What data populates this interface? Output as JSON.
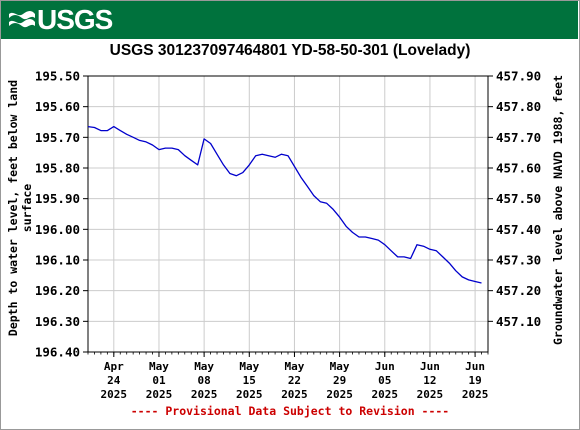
{
  "banner": {
    "logo_text": "USGS",
    "color": "#00723d"
  },
  "chart_data": {
    "type": "line",
    "title": "USGS 301237097464801 YD-58-50-301 (Lovelady)",
    "ylabel_left": "Depth to water level, feet below land surface",
    "ylabel_right": "Groundwater level above NAVD 1988, feet",
    "footer": "---- Provisional Data Subject to Revision ----",
    "y_left_inverted": true,
    "ylim_left": [
      195.5,
      196.4
    ],
    "yticks_left": [
      "195.50",
      "195.60",
      "195.70",
      "195.80",
      "195.90",
      "196.00",
      "196.10",
      "196.20",
      "196.30",
      "196.40"
    ],
    "yticks_right": [
      "457.90",
      "457.80",
      "457.70",
      "457.60",
      "457.50",
      "457.40",
      "457.30",
      "457.20",
      "457.10"
    ],
    "xlim": [
      "2025-04-20",
      "2025-06-21"
    ],
    "xticks": [
      {
        "month": "Apr",
        "day": "24",
        "year": "2025"
      },
      {
        "month": "May",
        "day": "01",
        "year": "2025"
      },
      {
        "month": "May",
        "day": "08",
        "year": "2025"
      },
      {
        "month": "May",
        "day": "15",
        "year": "2025"
      },
      {
        "month": "May",
        "day": "22",
        "year": "2025"
      },
      {
        "month": "May",
        "day": "29",
        "year": "2025"
      },
      {
        "month": "Jun",
        "day": "05",
        "year": "2025"
      },
      {
        "month": "Jun",
        "day": "12",
        "year": "2025"
      },
      {
        "month": "Jun",
        "day": "19",
        "year": "2025"
      }
    ],
    "grid": true,
    "series_color": "#0000cc",
    "series": [
      {
        "x": [
          "2025-04-20",
          "2025-04-21",
          "2025-04-22",
          "2025-04-23",
          "2025-04-24",
          "2025-04-25",
          "2025-04-26",
          "2025-04-27",
          "2025-04-28",
          "2025-04-29",
          "2025-04-30",
          "2025-05-01",
          "2025-05-02",
          "2025-05-03",
          "2025-05-04",
          "2025-05-05",
          "2025-05-06",
          "2025-05-07",
          "2025-05-08",
          "2025-05-09",
          "2025-05-10",
          "2025-05-11",
          "2025-05-12",
          "2025-05-13",
          "2025-05-14",
          "2025-05-15",
          "2025-05-16",
          "2025-05-17",
          "2025-05-18",
          "2025-05-19",
          "2025-05-20",
          "2025-05-21",
          "2025-05-22",
          "2025-05-23",
          "2025-05-24",
          "2025-05-25",
          "2025-05-26",
          "2025-05-27",
          "2025-05-28",
          "2025-05-29",
          "2025-05-30",
          "2025-05-31",
          "2025-06-01",
          "2025-06-02",
          "2025-06-03",
          "2025-06-04",
          "2025-06-05",
          "2025-06-06",
          "2025-06-07",
          "2025-06-08",
          "2025-06-09",
          "2025-06-10",
          "2025-06-11",
          "2025-06-12",
          "2025-06-13",
          "2025-06-14",
          "2025-06-15",
          "2025-06-16",
          "2025-06-17",
          "2025-06-18",
          "2025-06-19",
          "2025-06-20"
        ],
        "y": [
          195.665,
          195.668,
          195.678,
          195.678,
          195.665,
          195.678,
          195.69,
          195.7,
          195.71,
          195.715,
          195.725,
          195.74,
          195.735,
          195.735,
          195.74,
          195.76,
          195.775,
          195.79,
          195.705,
          195.72,
          195.755,
          195.79,
          195.818,
          195.825,
          195.815,
          195.79,
          195.76,
          195.755,
          195.76,
          195.765,
          195.755,
          195.76,
          195.795,
          195.83,
          195.86,
          195.89,
          195.91,
          195.915,
          195.935,
          195.96,
          195.99,
          196.01,
          196.025,
          196.025,
          196.03,
          196.035,
          196.05,
          196.07,
          196.09,
          196.09,
          196.095,
          196.05,
          196.055,
          196.065,
          196.07,
          196.09,
          196.11,
          196.135,
          196.155,
          196.165,
          196.17,
          196.175
        ]
      }
    ]
  }
}
